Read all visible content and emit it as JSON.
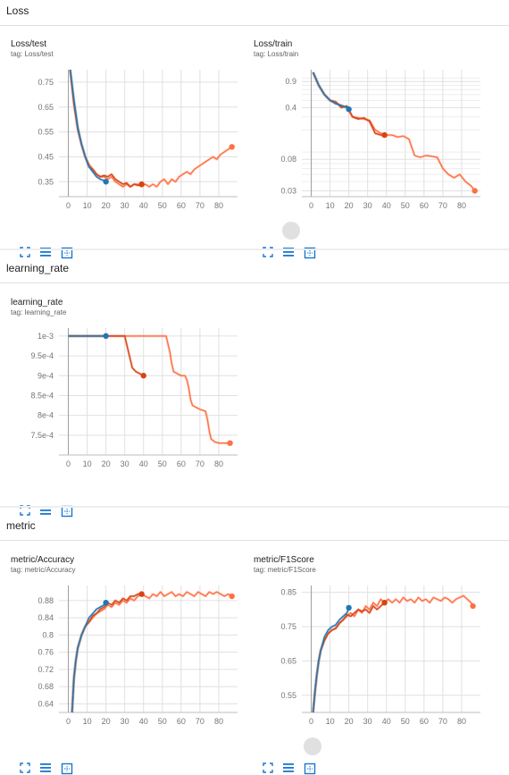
{
  "sections": {
    "loss": "Loss",
    "learning_rate": "learning_rate",
    "metric": "metric"
  },
  "colors": {
    "run_a": "#1f77b4",
    "run_b": "#d84315",
    "run_c": "#ff7043"
  },
  "icons": {
    "expand": "expand-icon",
    "list": "list-lines-icon",
    "fit": "fit-domain-icon"
  },
  "chart_data": [
    {
      "id": "loss_test",
      "type": "line",
      "title": "Loss/test",
      "tag": "tag: Loss/test",
      "xlim": [
        -5,
        90
      ],
      "ylim": [
        0.29,
        0.8
      ],
      "xticks": [
        0,
        10,
        20,
        30,
        40,
        50,
        60,
        70,
        80
      ],
      "yticks": [
        0.35,
        0.45,
        0.55,
        0.65,
        0.75
      ],
      "ytick_labels": [
        "0.35",
        "0.45",
        "0.55",
        "0.65",
        "0.75"
      ],
      "series": [
        {
          "color": "#1f77b4",
          "x": [
            1,
            3,
            5,
            7,
            9,
            11,
            13,
            15,
            17,
            19,
            20
          ],
          "y": [
            0.8,
            0.68,
            0.57,
            0.5,
            0.45,
            0.41,
            0.39,
            0.37,
            0.36,
            0.355,
            0.35
          ]
        },
        {
          "color": "#d84315",
          "x": [
            1,
            3,
            5,
            7,
            9,
            11,
            13,
            15,
            17,
            19,
            21,
            23,
            25,
            27,
            29,
            31,
            33,
            35,
            37,
            39
          ],
          "y": [
            0.8,
            0.66,
            0.56,
            0.5,
            0.45,
            0.41,
            0.4,
            0.38,
            0.37,
            0.375,
            0.37,
            0.38,
            0.36,
            0.35,
            0.34,
            0.345,
            0.33,
            0.34,
            0.335,
            0.34
          ]
        },
        {
          "color": "#ff7043",
          "x": [
            1,
            3,
            5,
            7,
            9,
            11,
            13,
            15,
            17,
            19,
            21,
            23,
            25,
            27,
            29,
            31,
            33,
            35,
            37,
            39,
            41,
            43,
            45,
            47,
            49,
            51,
            53,
            55,
            57,
            59,
            61,
            63,
            65,
            67,
            69,
            71,
            73,
            75,
            77,
            79,
            81,
            83,
            85,
            87
          ],
          "y": [
            0.8,
            0.67,
            0.56,
            0.5,
            0.45,
            0.42,
            0.4,
            0.38,
            0.37,
            0.37,
            0.36,
            0.37,
            0.35,
            0.34,
            0.33,
            0.34,
            0.33,
            0.34,
            0.34,
            0.33,
            0.34,
            0.33,
            0.34,
            0.33,
            0.35,
            0.36,
            0.34,
            0.36,
            0.35,
            0.37,
            0.38,
            0.39,
            0.38,
            0.4,
            0.41,
            0.42,
            0.43,
            0.44,
            0.45,
            0.44,
            0.46,
            0.47,
            0.48,
            0.49
          ]
        }
      ]
    },
    {
      "id": "loss_train",
      "type": "line",
      "title": "Loss/train",
      "tag": "tag: Loss/train",
      "yscale": "log",
      "xlim": [
        -5,
        90
      ],
      "ylim": [
        0.025,
        1.3
      ],
      "xticks": [
        0,
        10,
        20,
        30,
        40,
        50,
        60,
        70,
        80
      ],
      "yticks": [
        0.03,
        0.08,
        0.4,
        0.9
      ],
      "ytick_labels": [
        "0.03",
        "0.08",
        "0.4",
        "0.9"
      ],
      "series": [
        {
          "color": "#1f77b4",
          "x": [
            1,
            4,
            7,
            10,
            13,
            16,
            19,
            20
          ],
          "y": [
            1.2,
            0.8,
            0.6,
            0.5,
            0.45,
            0.43,
            0.4,
            0.38
          ]
        },
        {
          "color": "#d84315",
          "x": [
            1,
            4,
            7,
            10,
            13,
            16,
            19,
            22,
            25,
            28,
            31,
            34,
            37,
            39
          ],
          "y": [
            1.2,
            0.8,
            0.6,
            0.5,
            0.48,
            0.4,
            0.42,
            0.3,
            0.28,
            0.29,
            0.26,
            0.18,
            0.17,
            0.17
          ]
        },
        {
          "color": "#ff7043",
          "x": [
            1,
            4,
            7,
            10,
            13,
            16,
            19,
            22,
            25,
            28,
            31,
            34,
            37,
            40,
            43,
            46,
            49,
            52,
            55,
            58,
            61,
            64,
            67,
            70,
            73,
            76,
            79,
            82,
            85,
            87
          ],
          "y": [
            1.2,
            0.8,
            0.6,
            0.5,
            0.47,
            0.42,
            0.4,
            0.3,
            0.29,
            0.28,
            0.27,
            0.2,
            0.18,
            0.17,
            0.17,
            0.16,
            0.165,
            0.15,
            0.09,
            0.085,
            0.09,
            0.088,
            0.085,
            0.06,
            0.05,
            0.045,
            0.05,
            0.04,
            0.035,
            0.03
          ]
        }
      ]
    },
    {
      "id": "learning_rate",
      "type": "line",
      "title": "learning_rate",
      "tag": "tag: learning_rate",
      "xlim": [
        -5,
        90
      ],
      "ylim": [
        0.0007,
        0.00102
      ],
      "xticks": [
        0,
        10,
        20,
        30,
        40,
        50,
        60,
        70,
        80
      ],
      "yticks": [
        0.00075,
        0.0008,
        0.00085,
        0.0009,
        0.00095,
        0.001
      ],
      "ytick_labels": [
        "7.5e-4",
        "8e-4",
        "8.5e-4",
        "9e-4",
        "9.5e-4",
        "1e-3"
      ],
      "series": [
        {
          "color": "#1f77b4",
          "x": [
            0,
            20
          ],
          "y": [
            0.001,
            0.001
          ]
        },
        {
          "color": "#d84315",
          "x": [
            0,
            30,
            31,
            32,
            33,
            34,
            35,
            36,
            38,
            40
          ],
          "y": [
            0.001,
            0.001,
            0.00098,
            0.00096,
            0.00094,
            0.00092,
            0.000915,
            0.00091,
            0.000905,
            0.0009
          ]
        },
        {
          "color": "#ff7043",
          "x": [
            0,
            52,
            53,
            54,
            55,
            56,
            58,
            60,
            62,
            63,
            64,
            65,
            66,
            68,
            70,
            72,
            73,
            74,
            75,
            76,
            78,
            80,
            82,
            84,
            86
          ],
          "y": [
            0.001,
            0.001,
            0.00098,
            0.00096,
            0.00093,
            0.00091,
            0.000905,
            0.0009,
            0.0009,
            0.00089,
            0.00087,
            0.00084,
            0.000825,
            0.00082,
            0.000815,
            0.000812,
            0.00081,
            0.00079,
            0.00076,
            0.00074,
            0.000733,
            0.00073,
            0.00073,
            0.00073,
            0.00073
          ]
        }
      ]
    },
    {
      "id": "metric_accuracy",
      "type": "line",
      "title": "metric/Accuracy",
      "tag": "tag: metric/Accuracy",
      "xlim": [
        -5,
        90
      ],
      "ylim": [
        0.62,
        0.915
      ],
      "xticks": [
        0,
        10,
        20,
        30,
        40,
        50,
        60,
        70,
        80
      ],
      "yticks": [
        0.64,
        0.68,
        0.72,
        0.76,
        0.8,
        0.84,
        0.88
      ],
      "ytick_labels": [
        "0.64",
        "0.68",
        "0.72",
        "0.76",
        "0.8",
        "0.84",
        "0.88"
      ],
      "series": [
        {
          "color": "#1f77b4",
          "x": [
            2,
            3,
            4,
            5,
            7,
            9,
            11,
            13,
            15,
            17,
            19,
            20
          ],
          "y": [
            0.62,
            0.7,
            0.74,
            0.77,
            0.8,
            0.82,
            0.84,
            0.85,
            0.86,
            0.865,
            0.87,
            0.875
          ]
        },
        {
          "color": "#d84315",
          "x": [
            2,
            3,
            4,
            5,
            7,
            9,
            11,
            13,
            15,
            17,
            19,
            21,
            23,
            25,
            27,
            29,
            31,
            33,
            35,
            37,
            39
          ],
          "y": [
            0.62,
            0.7,
            0.74,
            0.77,
            0.8,
            0.82,
            0.83,
            0.845,
            0.85,
            0.86,
            0.865,
            0.875,
            0.87,
            0.88,
            0.875,
            0.885,
            0.88,
            0.89,
            0.89,
            0.895,
            0.895
          ]
        },
        {
          "color": "#ff7043",
          "x": [
            2,
            3,
            4,
            5,
            7,
            9,
            11,
            13,
            15,
            17,
            19,
            21,
            23,
            25,
            27,
            29,
            31,
            33,
            35,
            37,
            39,
            41,
            43,
            45,
            47,
            49,
            51,
            53,
            55,
            57,
            59,
            61,
            63,
            65,
            67,
            69,
            71,
            73,
            75,
            77,
            79,
            81,
            83,
            85,
            87
          ],
          "y": [
            0.62,
            0.7,
            0.74,
            0.77,
            0.8,
            0.82,
            0.83,
            0.84,
            0.85,
            0.855,
            0.86,
            0.87,
            0.865,
            0.875,
            0.87,
            0.88,
            0.875,
            0.885,
            0.88,
            0.89,
            0.895,
            0.89,
            0.885,
            0.895,
            0.89,
            0.9,
            0.89,
            0.895,
            0.9,
            0.89,
            0.895,
            0.89,
            0.9,
            0.895,
            0.89,
            0.9,
            0.895,
            0.89,
            0.9,
            0.895,
            0.9,
            0.895,
            0.89,
            0.895,
            0.89
          ]
        }
      ]
    },
    {
      "id": "metric_f1",
      "type": "line",
      "title": "metric/F1Score",
      "tag": "tag: metric/F1Score",
      "xlim": [
        -5,
        90
      ],
      "ylim": [
        0.5,
        0.87
      ],
      "xticks": [
        0,
        10,
        20,
        30,
        40,
        50,
        60,
        70,
        80
      ],
      "yticks": [
        0.55,
        0.65,
        0.75,
        0.85
      ],
      "ytick_labels": [
        "0.55",
        "0.65",
        "0.75",
        "0.85"
      ],
      "series": [
        {
          "color": "#1f77b4",
          "x": [
            1,
            2,
            3,
            4,
            5,
            7,
            9,
            11,
            13,
            15,
            17,
            19,
            20
          ],
          "y": [
            0.5,
            0.56,
            0.61,
            0.65,
            0.68,
            0.72,
            0.74,
            0.75,
            0.755,
            0.77,
            0.78,
            0.79,
            0.805
          ]
        },
        {
          "color": "#d84315",
          "x": [
            1,
            2,
            3,
            4,
            5,
            7,
            9,
            11,
            13,
            15,
            17,
            19,
            21,
            23,
            25,
            27,
            29,
            31,
            33,
            35,
            37,
            39
          ],
          "y": [
            0.5,
            0.56,
            0.61,
            0.65,
            0.68,
            0.71,
            0.73,
            0.74,
            0.745,
            0.76,
            0.77,
            0.785,
            0.78,
            0.79,
            0.8,
            0.795,
            0.8,
            0.79,
            0.81,
            0.8,
            0.81,
            0.82
          ]
        },
        {
          "color": "#ff7043",
          "x": [
            1,
            2,
            3,
            4,
            5,
            7,
            9,
            11,
            13,
            15,
            17,
            19,
            21,
            23,
            25,
            27,
            29,
            31,
            33,
            35,
            37,
            39,
            41,
            43,
            45,
            47,
            49,
            51,
            53,
            55,
            57,
            59,
            61,
            63,
            65,
            67,
            69,
            71,
            73,
            75,
            77,
            79,
            81,
            83,
            85,
            86
          ],
          "y": [
            0.5,
            0.56,
            0.61,
            0.65,
            0.68,
            0.71,
            0.73,
            0.74,
            0.745,
            0.76,
            0.77,
            0.78,
            0.79,
            0.78,
            0.8,
            0.79,
            0.81,
            0.8,
            0.82,
            0.81,
            0.83,
            0.82,
            0.83,
            0.82,
            0.83,
            0.82,
            0.835,
            0.825,
            0.83,
            0.82,
            0.835,
            0.825,
            0.83,
            0.82,
            0.835,
            0.83,
            0.825,
            0.835,
            0.83,
            0.82,
            0.83,
            0.835,
            0.84,
            0.83,
            0.82,
            0.81
          ]
        }
      ]
    }
  ]
}
